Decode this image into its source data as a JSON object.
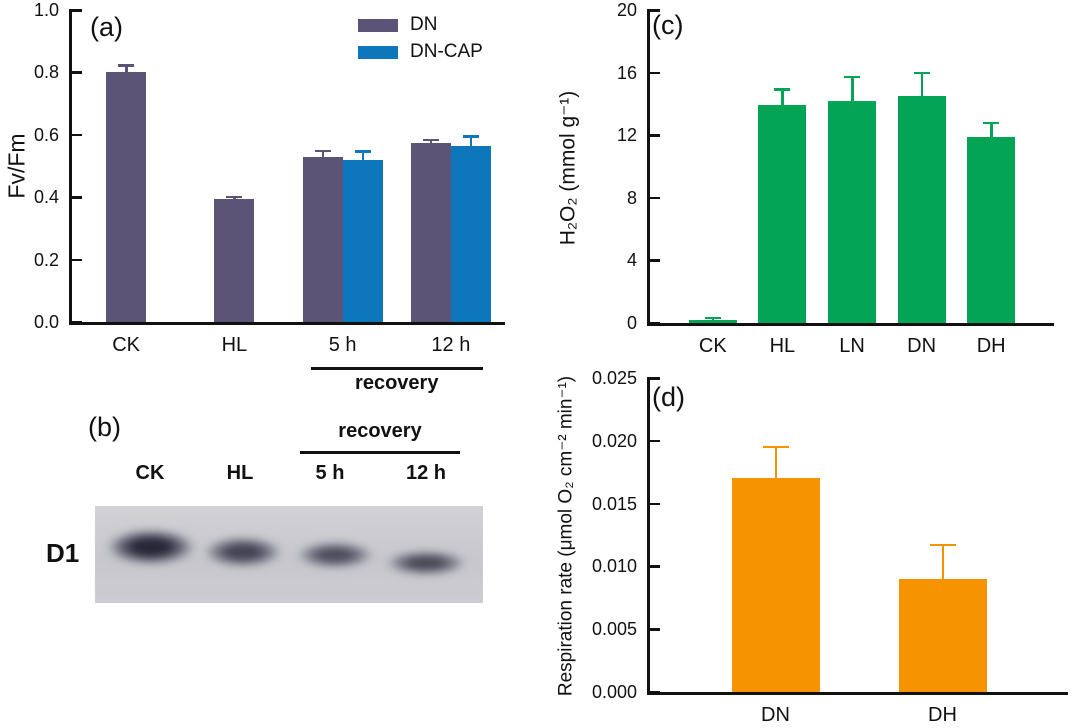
{
  "panels": {
    "a": {
      "letter": "(a)"
    },
    "b": {
      "letter": "(b)",
      "protein_label": "D1",
      "group_label": "recovery",
      "lanes": [
        "CK",
        "HL",
        "5 h",
        "12 h"
      ],
      "bands": [
        {
          "lane": "CK",
          "intensity": "strong"
        },
        {
          "lane": "HL",
          "intensity": "medium"
        },
        {
          "lane": "5 h",
          "intensity": "medium-weak"
        },
        {
          "lane": "12 h",
          "intensity": "medium-weak"
        }
      ]
    },
    "c": {
      "letter": "(c)"
    },
    "d": {
      "letter": "(d)"
    }
  },
  "chart_data": [
    {
      "panel": "a",
      "type": "bar",
      "title": "",
      "xlabel": "",
      "ylabel": "Fv/Fm",
      "ylim": [
        0,
        1.0
      ],
      "yticks": [
        0,
        0.2,
        0.4,
        0.6,
        0.8,
        1.0
      ],
      "grid": false,
      "legend_position": "top-right",
      "categories": [
        "CK",
        "HL",
        "5 h",
        "12 h"
      ],
      "series": [
        {
          "name": "DN",
          "color": "#5b5476",
          "values": [
            0.8,
            0.395,
            0.528,
            0.575
          ],
          "errors": [
            0.022,
            0.005,
            0.02,
            0.008
          ]
        },
        {
          "name": "DN-CAP",
          "color": "#0e76ba",
          "values": [
            null,
            null,
            0.52,
            0.563
          ],
          "errors": [
            null,
            null,
            0.026,
            0.03
          ]
        }
      ],
      "annotation": {
        "text": "recovery",
        "categories": [
          "5 h",
          "12 h"
        ]
      }
    },
    {
      "panel": "c",
      "type": "bar",
      "title": "",
      "xlabel": "",
      "ylabel": "H₂O₂ (mmol g⁻¹)",
      "ylim": [
        0,
        20
      ],
      "yticks": [
        0,
        4,
        8,
        12,
        16,
        20
      ],
      "grid": false,
      "categories": [
        "CK",
        "HL",
        "LN",
        "DN",
        "DH"
      ],
      "series": [
        {
          "name": "H2O2",
          "color": "#04a457",
          "values": [
            0.2,
            13.9,
            14.2,
            14.5,
            11.9
          ],
          "errors": [
            0.1,
            1.0,
            1.5,
            1.45,
            0.85
          ]
        }
      ]
    },
    {
      "panel": "d",
      "type": "bar",
      "title": "",
      "xlabel": "",
      "ylabel": "Respiration rate (μmol O₂ cm⁻² min⁻¹)",
      "ylim": [
        0,
        0.025
      ],
      "yticks": [
        0,
        0.005,
        0.01,
        0.015,
        0.02,
        0.025
      ],
      "grid": false,
      "categories": [
        "DN",
        "DH"
      ],
      "series": [
        {
          "name": "Respiration rate",
          "color": "#f59400",
          "values": [
            0.017,
            0.009
          ],
          "errors": [
            0.0025,
            0.0027
          ]
        }
      ]
    }
  ]
}
